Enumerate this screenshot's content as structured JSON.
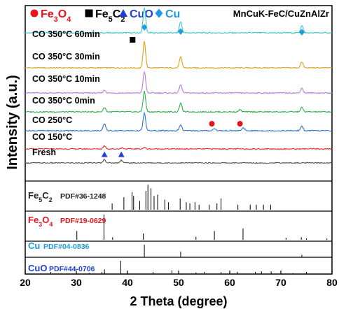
{
  "chart_data": {
    "type": "line",
    "xlabel": "2 Theta (degree)",
    "ylabel": "Intensity (a.u.)",
    "xlim": [
      20,
      80
    ],
    "xticks": [
      "20",
      "30",
      "40",
      "50",
      "60",
      "70",
      "80"
    ],
    "catalyst": "MnCuK-FeC/CuZnAlZr",
    "legend": [
      {
        "name": "Fe3O4",
        "color": "#e8141b",
        "marker": "circle"
      },
      {
        "name": "Fe5C2",
        "color": "#000000",
        "marker": "square"
      },
      {
        "name": "CuO",
        "color": "#1f3fd6",
        "marker": "triangle"
      },
      {
        "name": "Cu",
        "color": "#1e9be0",
        "marker": "diamond"
      }
    ],
    "series": [
      {
        "name": "CO 350°C 60min",
        "color": "#3fc8c8",
        "peaks": [
          {
            "x": 43.3,
            "h": 1.0
          },
          {
            "x": 50.4,
            "h": 0.45
          },
          {
            "x": 74.1,
            "h": 0.3
          }
        ],
        "markers": [
          {
            "type": "square",
            "x": 41.0
          },
          {
            "type": "diamond",
            "x": 43.3
          },
          {
            "type": "diamond",
            "x": 50.4
          },
          {
            "type": "diamond",
            "x": 74.1
          }
        ]
      },
      {
        "name": "CO 350°C 30min",
        "color": "#d9a21e",
        "peaks": [
          {
            "x": 43.3,
            "h": 1.0
          },
          {
            "x": 50.4,
            "h": 0.4
          },
          {
            "x": 74.1,
            "h": 0.22
          }
        ],
        "markers": []
      },
      {
        "name": "CO 350°C 10min",
        "color": "#b57ee0",
        "peaks": [
          {
            "x": 35.5,
            "h": 0.12
          },
          {
            "x": 43.3,
            "h": 0.9
          },
          {
            "x": 50.4,
            "h": 0.35
          },
          {
            "x": 74.1,
            "h": 0.2
          }
        ],
        "markers": []
      },
      {
        "name": "CO 350°C 0min",
        "color": "#2fb04f",
        "peaks": [
          {
            "x": 35.5,
            "h": 0.2
          },
          {
            "x": 43.3,
            "h": 0.95
          },
          {
            "x": 50.4,
            "h": 0.4
          },
          {
            "x": 62.0,
            "h": 0.1
          },
          {
            "x": 74.1,
            "h": 0.2
          }
        ],
        "markers": []
      },
      {
        "name": "CO 250°C",
        "color": "#2f6fcf",
        "peaks": [
          {
            "x": 35.5,
            "h": 0.35
          },
          {
            "x": 43.3,
            "h": 0.9
          },
          {
            "x": 50.4,
            "h": 0.3
          },
          {
            "x": 57.0,
            "h": 0.12
          },
          {
            "x": 62.6,
            "h": 0.15
          },
          {
            "x": 74.1,
            "h": 0.22
          }
        ],
        "markers": [
          {
            "type": "circle",
            "x": 56.5
          },
          {
            "type": "circle",
            "x": 62.0
          }
        ]
      },
      {
        "name": "CO 150°C",
        "color": "#e0302f",
        "peaks": [
          {
            "x": 35.5,
            "h": 0.28
          },
          {
            "x": 39.0,
            "h": 0.1
          },
          {
            "x": 43.3,
            "h": 0.12
          }
        ],
        "markers": []
      },
      {
        "name": "Fresh",
        "color": "#555555",
        "peaks": [
          {
            "x": 35.5,
            "h": 0.35
          },
          {
            "x": 38.8,
            "h": 0.3
          }
        ],
        "markers": [
          {
            "type": "triangle",
            "x": 35.5
          },
          {
            "type": "triangle",
            "x": 38.8
          }
        ]
      }
    ],
    "references": [
      {
        "name": "Fe5C2",
        "label": "PDF#36-1248",
        "color": "#222222",
        "lines": [
          {
            "x": 37.0,
            "h": 0.25
          },
          {
            "x": 39.3,
            "h": 0.5
          },
          {
            "x": 40.9,
            "h": 0.7
          },
          {
            "x": 41.2,
            "h": 0.55
          },
          {
            "x": 42.4,
            "h": 0.35
          },
          {
            "x": 43.6,
            "h": 0.75
          },
          {
            "x": 44.0,
            "h": 1.0
          },
          {
            "x": 44.6,
            "h": 0.85
          },
          {
            "x": 45.2,
            "h": 0.55
          },
          {
            "x": 45.9,
            "h": 0.6
          },
          {
            "x": 47.3,
            "h": 0.4
          },
          {
            "x": 48.0,
            "h": 0.3
          },
          {
            "x": 50.3,
            "h": 0.45
          },
          {
            "x": 51.5,
            "h": 0.3
          },
          {
            "x": 52.2,
            "h": 0.25
          },
          {
            "x": 53.2,
            "h": 0.3
          },
          {
            "x": 54.0,
            "h": 0.2
          },
          {
            "x": 56.0,
            "h": 0.2
          },
          {
            "x": 57.5,
            "h": 0.25
          },
          {
            "x": 58.3,
            "h": 0.45
          },
          {
            "x": 61.6,
            "h": 0.2
          },
          {
            "x": 64.0,
            "h": 0.2
          },
          {
            "x": 65.2,
            "h": 0.2
          },
          {
            "x": 66.6,
            "h": 0.2
          },
          {
            "x": 68.0,
            "h": 0.2
          }
        ]
      },
      {
        "name": "Fe3O4",
        "label": "PDF#19-0629",
        "color": "#e8141b",
        "lines": [
          {
            "x": 30.1,
            "h": 0.35
          },
          {
            "x": 35.4,
            "h": 1.0
          },
          {
            "x": 37.1,
            "h": 0.1
          },
          {
            "x": 43.1,
            "h": 0.25
          },
          {
            "x": 53.4,
            "h": 0.12
          },
          {
            "x": 57.0,
            "h": 0.35
          },
          {
            "x": 62.6,
            "h": 0.45
          },
          {
            "x": 71.0,
            "h": 0.08
          },
          {
            "x": 74.0,
            "h": 0.1
          },
          {
            "x": 75.0,
            "h": 0.05
          },
          {
            "x": 79.0,
            "h": 0.05
          }
        ]
      },
      {
        "name": "Cu",
        "label": "PDF#04-0836",
        "color": "#1e9be0",
        "lines": [
          {
            "x": 43.3,
            "h": 1.0
          },
          {
            "x": 50.4,
            "h": 0.46
          },
          {
            "x": 74.1,
            "h": 0.2
          }
        ]
      },
      {
        "name": "CuO",
        "label": "PDF#44-0706",
        "color": "#1f3fd6",
        "lines": [
          {
            "x": 32.5,
            "h": 0.08
          },
          {
            "x": 35.5,
            "h": 0.35
          },
          {
            "x": 38.7,
            "h": 1.0
          },
          {
            "x": 48.7,
            "h": 0.28
          },
          {
            "x": 53.4,
            "h": 0.12
          },
          {
            "x": 58.3,
            "h": 0.14
          },
          {
            "x": 61.5,
            "h": 0.17
          },
          {
            "x": 66.2,
            "h": 0.2
          },
          {
            "x": 68.1,
            "h": 0.2
          },
          {
            "x": 72.4,
            "h": 0.06
          },
          {
            "x": 75.0,
            "h": 0.1
          }
        ]
      }
    ]
  }
}
